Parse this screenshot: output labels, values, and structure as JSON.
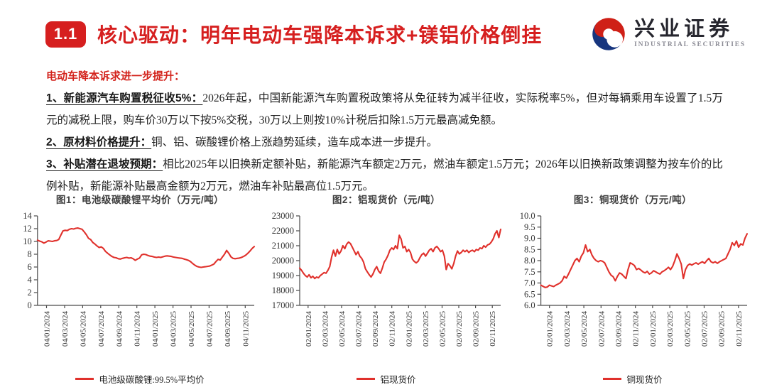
{
  "colors": {
    "accent_red": "#d61f1f",
    "body_red": "#d3231c",
    "chart_line_red": "#e0312c",
    "text_dark": "#1f1f1f",
    "chart_title_gray": "#404040",
    "axis_gray": "#4a4a4a",
    "logo_blue": "#17357e",
    "logo_red": "#cf2017",
    "logo_en_gray": "#8a8a94"
  },
  "header": {
    "badge": "1.1",
    "title": "核心驱动：明年电动车强降本诉求+镁铝价格倒挂"
  },
  "logo": {
    "cn": "兴业证券",
    "en": "INDUSTRIAL SECURITIES"
  },
  "body": {
    "intro": "电动车降本诉求进一步提升：",
    "paragraphs": [
      {
        "lead": "1、新能源汽车购置税征收5%：",
        "text": "2026年起，中国新能源汽车购置税政策将从免征转为减半征收，实际税率5%，但对每辆乘用车设置了1.5万元的减税上限，购车价30万以下按5%交税，30万以上则按10%计税后扣除1.5万元最高减免额。"
      },
      {
        "lead": "2、原材料价格提升：",
        "text": "铜、铝、碳酸锂价格上涨趋势延续，造车成本进一步提升。"
      },
      {
        "lead": "3、补贴潜在退坡预期：",
        "text": "相比2025年以旧换新定额补贴，新能源汽车额定2万元，燃油车额定1.5万元；2026年以旧换新政策调整为按车价的比例补贴，新能源补贴最高金额为2万元，燃油车补贴最高位1.5万元。"
      }
    ]
  },
  "chart_data": [
    {
      "type": "line",
      "title": "图1：电池级碳酸锂平均价（万元/吨）",
      "legend": "电池级碳酸锂:99.5%平均价",
      "line_color": "#e0312c",
      "ylim": [
        0,
        14
      ],
      "y_ticks": [
        "0",
        "2",
        "4",
        "6",
        "8",
        "10",
        "12",
        "14"
      ],
      "grid": false,
      "legend_position": "bottom",
      "x_labels": [
        "04/01/2024",
        "04/03/2024",
        "04/05/2024",
        "04/07/2024",
        "04/09/2024",
        "04/11/2024",
        "04/01/2025",
        "04/03/2025",
        "04/05/2025",
        "04/07/2025",
        "04/09/2025",
        "04/11/2025"
      ],
      "values": [
        10.2,
        10.05,
        9.95,
        9.75,
        9.9,
        10.1,
        10.05,
        10.0,
        10.1,
        10.15,
        10.3,
        11.0,
        11.65,
        11.75,
        11.7,
        11.9,
        12.0,
        11.95,
        12.05,
        12.1,
        12.0,
        11.9,
        11.5,
        11.05,
        10.5,
        10.3,
        9.85,
        9.6,
        9.3,
        9.05,
        9.15,
        8.9,
        8.45,
        8.15,
        7.9,
        7.65,
        7.5,
        7.45,
        7.3,
        7.25,
        7.35,
        7.45,
        7.5,
        7.4,
        7.45,
        7.3,
        7.05,
        7.25,
        7.4,
        7.9,
        8.0,
        7.95,
        7.8,
        7.7,
        7.65,
        7.55,
        7.5,
        7.55,
        7.5,
        7.6,
        7.7,
        7.75,
        7.7,
        7.65,
        7.55,
        7.5,
        7.45,
        7.4,
        7.35,
        7.25,
        7.15,
        7.05,
        6.85,
        6.55,
        6.3,
        6.1,
        6.0,
        5.95,
        6.0,
        6.05,
        6.1,
        6.15,
        6.3,
        6.45,
        6.85,
        7.2,
        7.1,
        7.55,
        8.0,
        8.6,
        8.15,
        7.6,
        7.35,
        7.3,
        7.35,
        7.4,
        7.5,
        7.65,
        7.85,
        8.15,
        8.5,
        8.9,
        9.2
      ]
    },
    {
      "type": "line",
      "title": "图2：铝现货价（元/吨）",
      "legend": "铝现货价",
      "line_color": "#e0312c",
      "ylim": [
        17000,
        23000
      ],
      "y_ticks": [
        "17000",
        "18000",
        "19000",
        "20000",
        "21000",
        "22000",
        "23000"
      ],
      "grid": false,
      "legend_position": "bottom",
      "x_labels": [
        "02/01/2024",
        "02/03/2024",
        "02/05/2024",
        "02/07/2024",
        "02/09/2024",
        "02/11/2024",
        "02/01/2025",
        "02/03/2025",
        "02/05/2025",
        "02/07/2025",
        "02/09/2025",
        "02/11/2025"
      ],
      "values": [
        19500,
        19350,
        19150,
        19000,
        18900,
        19050,
        18850,
        18950,
        18800,
        18900,
        18850,
        19000,
        19100,
        19200,
        19150,
        19350,
        19600,
        20250,
        20700,
        20300,
        20750,
        20450,
        20650,
        21000,
        20800,
        21100,
        21250,
        21150,
        20900,
        20650,
        20400,
        20600,
        20300,
        20150,
        19900,
        19450,
        19250,
        19050,
        18900,
        19100,
        19400,
        19600,
        19300,
        19150,
        19500,
        19900,
        20100,
        20350,
        20700,
        20850,
        20750,
        21000,
        20800,
        21700,
        21450,
        20850,
        20950,
        20600,
        20750,
        20550,
        20100,
        19950,
        19850,
        19950,
        20200,
        20400,
        20500,
        20300,
        20500,
        20700,
        20800,
        20600,
        20850,
        20950,
        20800,
        20600,
        20700,
        20300,
        19400,
        19800,
        19650,
        19450,
        19800,
        20300,
        20650,
        20450,
        20550,
        20700,
        20600,
        20700,
        20550,
        20650,
        20700,
        20600,
        20750,
        20700,
        20850,
        20800,
        21000,
        20900,
        21050,
        21100,
        21250,
        21450,
        21800,
        22000,
        21550,
        22100
      ]
    },
    {
      "type": "line",
      "title": "图3：铜现货价（万元/吨）",
      "legend": "铜现货价",
      "line_color": "#e0312c",
      "ylim": [
        6.0,
        10.0
      ],
      "y_ticks": [
        "6.0",
        "6.5",
        "7.0",
        "7.5",
        "8.0",
        "8.5",
        "9.0",
        "9.5",
        "10.0"
      ],
      "grid": false,
      "legend_position": "bottom",
      "x_labels": [
        "02/01/2024",
        "02/03/2024",
        "02/05/2024",
        "02/07/2024",
        "02/09/2024",
        "02/11/2024",
        "02/01/2025",
        "02/03/2025",
        "02/05/2025",
        "02/07/2025",
        "02/09/2025",
        "02/11/2025"
      ],
      "values": [
        6.9,
        6.85,
        6.8,
        6.82,
        6.9,
        6.87,
        6.84,
        6.9,
        6.95,
        7.0,
        7.1,
        7.3,
        7.22,
        7.4,
        7.6,
        7.8,
        8.0,
        8.1,
        7.95,
        8.2,
        8.35,
        8.7,
        8.4,
        8.5,
        8.25,
        8.1,
        8.0,
        7.95,
        8.0,
        7.97,
        7.9,
        7.7,
        7.5,
        7.35,
        7.28,
        7.1,
        7.3,
        7.45,
        7.4,
        7.3,
        7.2,
        7.6,
        7.9,
        7.85,
        7.78,
        7.6,
        7.65,
        7.58,
        7.5,
        7.45,
        7.52,
        7.4,
        7.45,
        7.55,
        7.5,
        7.44,
        7.4,
        7.5,
        7.55,
        7.62,
        7.7,
        7.6,
        7.75,
        8.0,
        8.3,
        8.1,
        7.85,
        7.2,
        7.6,
        7.78,
        7.85,
        7.8,
        7.86,
        7.9,
        7.84,
        7.9,
        7.95,
        7.88,
        8.0,
        8.1,
        7.95,
        7.9,
        7.95,
        7.88,
        7.95,
        8.0,
        8.05,
        8.1,
        8.3,
        8.5,
        8.8,
        8.68,
        8.88,
        8.6,
        8.75,
        8.7,
        9.0,
        9.2
      ]
    }
  ]
}
